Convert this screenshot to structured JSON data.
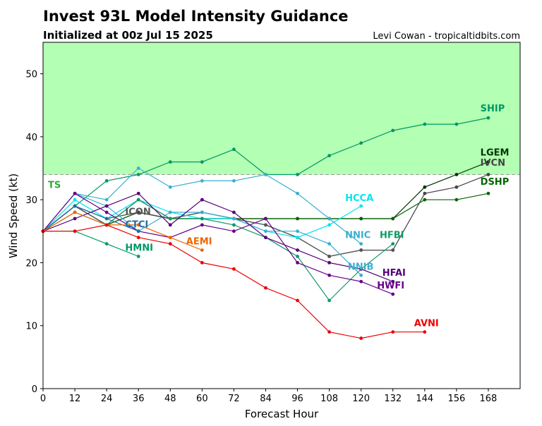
{
  "header": {
    "title": "Invest 93L Model Intensity Guidance",
    "subtitle": "Initialized at 00z Jul 15 2025",
    "credit": "Levi Cowan - tropicaltidbits.com"
  },
  "chart_data": {
    "type": "line",
    "xlabel": "Forecast Hour",
    "ylabel": "Wind Speed (kt)",
    "xlim": [
      0,
      180
    ],
    "ylim": [
      0,
      55
    ],
    "xticks": [
      0,
      12,
      24,
      36,
      48,
      60,
      72,
      84,
      96,
      108,
      120,
      132,
      144,
      156,
      168
    ],
    "yticks": [
      0,
      10,
      20,
      30,
      40,
      50
    ],
    "ts_band": {
      "label": "TS",
      "from": 34,
      "to": 55,
      "color": "#b3ffb3",
      "line_color": "#999999",
      "label_color": "#33aa33"
    },
    "series": [
      {
        "name": "SHIP",
        "color": "#009966",
        "x": [
          0,
          12,
          24,
          36,
          48,
          60,
          72,
          84,
          96,
          108,
          120,
          132,
          144,
          156,
          168
        ],
        "y": [
          25,
          29,
          33,
          34,
          36,
          36,
          38,
          34,
          34,
          37,
          39,
          41,
          42,
          42,
          43
        ],
        "label_at": [
          165,
          44
        ]
      },
      {
        "name": "LGEM",
        "color": "#003300",
        "x": [
          0,
          12,
          24,
          36,
          48,
          60,
          72,
          84,
          96,
          108,
          120,
          132,
          144,
          156,
          168
        ],
        "y": [
          25,
          29,
          26,
          28,
          27,
          27,
          27,
          27,
          27,
          27,
          27,
          27,
          32,
          34,
          36
        ],
        "label_at": [
          165,
          37
        ]
      },
      {
        "name": "DSHP",
        "color": "#006600",
        "x": [
          0,
          12,
          24,
          36,
          48,
          60,
          72,
          84,
          96,
          108,
          120,
          132,
          144,
          156,
          168
        ],
        "y": [
          25,
          29,
          26,
          28,
          27,
          27,
          27,
          27,
          27,
          27,
          27,
          27,
          30,
          30,
          31
        ],
        "label_at": [
          165,
          32.4
        ]
      },
      {
        "name": "IVCN",
        "color": "#444444",
        "x": [
          0,
          12,
          24,
          36,
          48,
          60,
          72,
          84,
          96,
          108,
          120,
          132,
          144,
          156,
          168
        ],
        "y": [
          25,
          29,
          27,
          28,
          27,
          28,
          27,
          26,
          24,
          21,
          22,
          22,
          31,
          32,
          34
        ],
        "label_at": [
          165,
          35.4
        ]
      },
      {
        "name": "ICON",
        "color": "#555555",
        "x": [
          0,
          12,
          24,
          36,
          48,
          60,
          72,
          84,
          96,
          108,
          120,
          132
        ],
        "y": [
          25,
          29,
          26,
          30,
          27,
          28,
          27,
          26,
          24,
          21,
          22,
          22
        ],
        "label_at": [
          31,
          27.6
        ]
      },
      {
        "name": "HCCA",
        "color": "#00e5ee",
        "x": [
          0,
          12,
          24,
          36,
          48,
          60,
          72,
          84,
          96,
          108,
          120
        ],
        "y": [
          25,
          30,
          27,
          30,
          28,
          27,
          27,
          25,
          24,
          26,
          29
        ],
        "label_at": [
          114,
          29.8
        ]
      },
      {
        "name": "NNIC",
        "color": "#3ab0d0",
        "x": [
          0,
          12,
          24,
          36,
          48,
          60,
          72,
          84,
          96,
          108,
          120
        ],
        "y": [
          25,
          31,
          30,
          35,
          32,
          33,
          33,
          34,
          31,
          27,
          23
        ],
        "label_at": [
          114,
          23.9
        ]
      },
      {
        "name": "NNIB",
        "color": "#3ab0d0",
        "x": [
          0,
          12,
          24,
          36,
          48,
          60,
          72,
          84,
          96,
          108,
          120
        ],
        "y": [
          25,
          31,
          29,
          25,
          28,
          28,
          27,
          25,
          25,
          23,
          18
        ],
        "label_at": [
          115,
          18.9
        ]
      },
      {
        "name": "HFBI",
        "color": "#119966",
        "x": [
          0,
          12,
          24,
          36,
          48,
          60,
          72,
          84,
          96,
          108,
          120,
          132
        ],
        "y": [
          25,
          28,
          26,
          30,
          27,
          27,
          26,
          24,
          21,
          14,
          19,
          23
        ],
        "label_at": [
          127,
          23.9
        ]
      },
      {
        "name": "HFAI",
        "color": "#550077",
        "x": [
          0,
          12,
          24,
          36,
          48,
          60,
          72,
          84,
          96,
          108,
          120,
          132
        ],
        "y": [
          25,
          27,
          29,
          31,
          26,
          30,
          28,
          24,
          22,
          20,
          19,
          17
        ],
        "label_at": [
          128,
          17.9
        ]
      },
      {
        "name": "HWFI",
        "color": "#660088",
        "x": [
          0,
          12,
          24,
          36,
          48,
          60,
          72,
          84,
          96,
          108,
          120,
          132
        ],
        "y": [
          25,
          31,
          28,
          25,
          24,
          26,
          25,
          27,
          20,
          18,
          17,
          15
        ],
        "label_at": [
          126,
          15.9
        ]
      },
      {
        "name": "CTCI",
        "color": "#1f6fa8",
        "x": [
          0,
          12,
          24,
          36
        ],
        "y": [
          25,
          29,
          27,
          25
        ],
        "label_at": [
          31,
          25.6
        ]
      },
      {
        "name": "HMNI",
        "color": "#009966",
        "x": [
          0,
          12,
          24,
          36
        ],
        "y": [
          25,
          25,
          23,
          21
        ],
        "label_at": [
          31,
          21.9
        ]
      },
      {
        "name": "AEMI",
        "color": "#ee6600",
        "x": [
          0,
          12,
          24,
          36,
          48,
          60
        ],
        "y": [
          25,
          28,
          26,
          26,
          24,
          22
        ],
        "label_at": [
          54,
          22.9
        ]
      },
      {
        "name": "AVNI",
        "color": "#ee0000",
        "x": [
          0,
          12,
          24,
          36,
          48,
          60,
          72,
          84,
          96,
          108,
          120,
          132,
          144
        ],
        "y": [
          25,
          25,
          26,
          24,
          23,
          20,
          19,
          16,
          14,
          9,
          8,
          9,
          9
        ],
        "label_at": [
          140,
          9.9
        ]
      }
    ]
  }
}
